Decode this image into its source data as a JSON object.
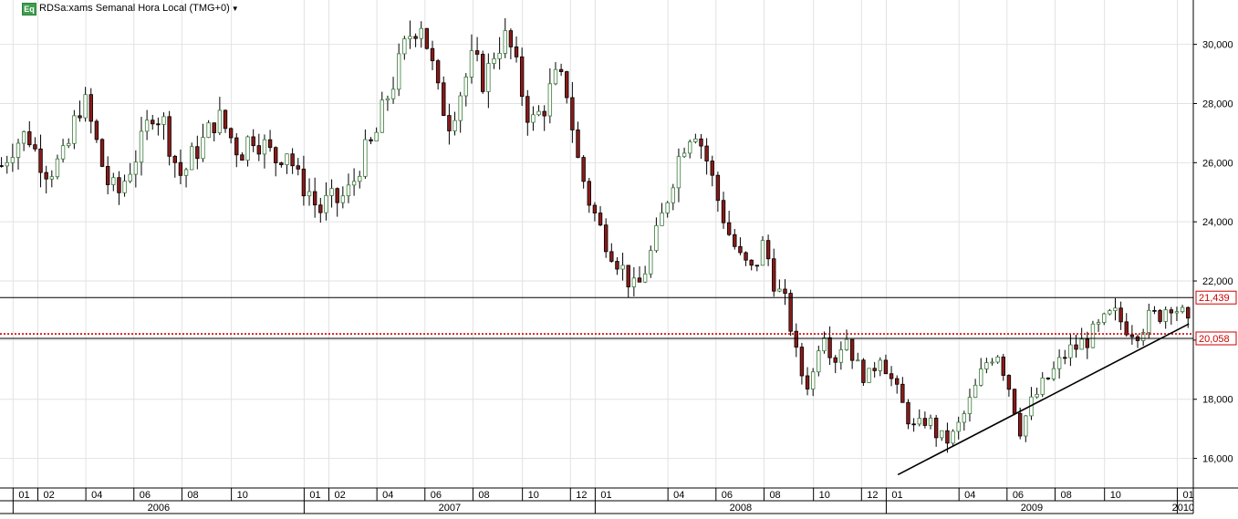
{
  "header": {
    "badge": "Eq",
    "title": "RDSa:xams Semanal Hora Local (TMG+0)",
    "caret_icon": "caret-down-icon"
  },
  "chart_data": {
    "type": "candlestick",
    "interval": "weekly",
    "ylim": [
      15000,
      31500
    ],
    "grid": true,
    "y_ticks": [
      "16,000",
      "18,000",
      "20,000",
      "22,000",
      "24,000",
      "26,000",
      "28,000",
      "30,000"
    ],
    "y_tick_values": [
      16000,
      18000,
      20000,
      22000,
      24000,
      26000,
      28000,
      30000
    ],
    "months": [
      {
        "label": "01",
        "at": 2006.0
      },
      {
        "label": "02",
        "at": 2006.085
      },
      {
        "label": "04",
        "at": 2006.25
      },
      {
        "label": "06",
        "at": 2006.415
      },
      {
        "label": "08",
        "at": 2006.58
      },
      {
        "label": "10",
        "at": 2006.75
      },
      {
        "label": "01",
        "at": 2007.0
      },
      {
        "label": "02",
        "at": 2007.085
      },
      {
        "label": "04",
        "at": 2007.25
      },
      {
        "label": "06",
        "at": 2007.415
      },
      {
        "label": "08",
        "at": 2007.58
      },
      {
        "label": "10",
        "at": 2007.75
      },
      {
        "label": "12",
        "at": 2007.915
      },
      {
        "label": "01",
        "at": 2008.0
      },
      {
        "label": "04",
        "at": 2008.25
      },
      {
        "label": "06",
        "at": 2008.415
      },
      {
        "label": "08",
        "at": 2008.58
      },
      {
        "label": "10",
        "at": 2008.75
      },
      {
        "label": "12",
        "at": 2008.915
      },
      {
        "label": "01",
        "at": 2009.0
      },
      {
        "label": "04",
        "at": 2009.25
      },
      {
        "label": "06",
        "at": 2009.415
      },
      {
        "label": "08",
        "at": 2009.58
      },
      {
        "label": "10",
        "at": 2009.75
      },
      {
        "label": "01",
        "at": 2010.0
      }
    ],
    "years": [
      {
        "label": "2006",
        "start": 2006.0,
        "end": 2007.0
      },
      {
        "label": "2007",
        "start": 2007.0,
        "end": 2008.0
      },
      {
        "label": "2008",
        "start": 2008.0,
        "end": 2009.0
      },
      {
        "label": "2009",
        "start": 2009.0,
        "end": 2010.0
      },
      {
        "label": "2010",
        "start": 2010.0,
        "end": 2010.04
      }
    ],
    "x_range": [
      2005.955,
      2010.055
    ],
    "path_points": [
      [
        2005.96,
        25900
      ],
      [
        2006.0,
        26600
      ],
      [
        2006.05,
        27000
      ],
      [
        2006.08,
        26300
      ],
      [
        2006.12,
        25700
      ],
      [
        2006.18,
        26200
      ],
      [
        2006.22,
        27700
      ],
      [
        2006.24,
        28200
      ],
      [
        2006.28,
        26900
      ],
      [
        2006.32,
        25400
      ],
      [
        2006.36,
        24900
      ],
      [
        2006.4,
        25800
      ],
      [
        2006.44,
        26600
      ],
      [
        2006.48,
        27800
      ],
      [
        2006.52,
        27300
      ],
      [
        2006.55,
        26200
      ],
      [
        2006.58,
        25500
      ],
      [
        2006.62,
        26300
      ],
      [
        2006.66,
        26800
      ],
      [
        2006.7,
        27600
      ],
      [
        2006.74,
        27000
      ],
      [
        2006.78,
        26300
      ],
      [
        2006.82,
        27000
      ],
      [
        2006.86,
        26600
      ],
      [
        2006.9,
        26100
      ],
      [
        2006.94,
        26500
      ],
      [
        2006.98,
        25400
      ],
      [
        2007.02,
        25000
      ],
      [
        2007.05,
        24300
      ],
      [
        2007.08,
        24700
      ],
      [
        2007.12,
        24700
      ],
      [
        2007.16,
        25100
      ],
      [
        2007.2,
        26200
      ],
      [
        2007.24,
        26700
      ],
      [
        2007.28,
        28100
      ],
      [
        2007.32,
        29100
      ],
      [
        2007.36,
        30300
      ],
      [
        2007.4,
        30900
      ],
      [
        2007.43,
        29700
      ],
      [
        2007.46,
        28300
      ],
      [
        2007.5,
        27400
      ],
      [
        2007.54,
        28500
      ],
      [
        2007.58,
        29500
      ],
      [
        2007.62,
        28700
      ],
      [
        2007.66,
        30000
      ],
      [
        2007.7,
        30200
      ],
      [
        2007.74,
        28700
      ],
      [
        2007.78,
        27300
      ],
      [
        2007.82,
        27800
      ],
      [
        2007.86,
        28800
      ],
      [
        2007.9,
        28600
      ],
      [
        2007.94,
        26100
      ],
      [
        2007.98,
        24700
      ],
      [
        2008.02,
        23700
      ],
      [
        2008.06,
        23000
      ],
      [
        2008.1,
        22300
      ],
      [
        2008.14,
        21600
      ],
      [
        2008.18,
        22600
      ],
      [
        2008.22,
        23800
      ],
      [
        2008.26,
        25300
      ],
      [
        2008.3,
        26600
      ],
      [
        2008.34,
        27300
      ],
      [
        2008.38,
        26200
      ],
      [
        2008.42,
        24800
      ],
      [
        2008.46,
        23600
      ],
      [
        2008.5,
        22700
      ],
      [
        2008.54,
        22300
      ],
      [
        2008.58,
        23300
      ],
      [
        2008.62,
        21800
      ],
      [
        2008.66,
        21100
      ],
      [
        2008.7,
        19000
      ],
      [
        2008.74,
        18400
      ],
      [
        2008.78,
        20600
      ],
      [
        2008.82,
        19300
      ],
      [
        2008.86,
        20200
      ],
      [
        2008.9,
        19100
      ],
      [
        2008.94,
        18700
      ],
      [
        2008.98,
        19600
      ],
      [
        2009.02,
        18600
      ],
      [
        2009.06,
        17700
      ],
      [
        2009.1,
        16900
      ],
      [
        2009.14,
        17400
      ],
      [
        2009.18,
        16700
      ],
      [
        2009.22,
        16600
      ],
      [
        2009.26,
        17300
      ],
      [
        2009.3,
        18200
      ],
      [
        2009.34,
        19200
      ],
      [
        2009.38,
        19700
      ],
      [
        2009.42,
        18500
      ],
      [
        2009.46,
        17000
      ],
      [
        2009.5,
        17900
      ],
      [
        2009.54,
        18500
      ],
      [
        2009.58,
        19000
      ],
      [
        2009.62,
        19600
      ],
      [
        2009.66,
        19800
      ],
      [
        2009.7,
        20100
      ],
      [
        2009.74,
        20500
      ],
      [
        2009.78,
        20900
      ],
      [
        2009.82,
        20500
      ],
      [
        2009.86,
        20300
      ],
      [
        2009.9,
        20700
      ],
      [
        2009.94,
        20900
      ],
      [
        2009.98,
        21300
      ],
      [
        2010.02,
        20800
      ],
      [
        2010.05,
        20100
      ]
    ],
    "horizontal_lines": [
      {
        "value": 21439,
        "label": "21,439",
        "color": "#000000",
        "style": "solid"
      },
      {
        "value": 20058,
        "label": "20,058",
        "color": "#000000",
        "style": "solid"
      },
      {
        "value": 20210,
        "label": "",
        "color": "#cc0000",
        "style": "dotted"
      }
    ],
    "trendline": {
      "x1": 2009.04,
      "y1": 15450,
      "x2": 2010.04,
      "y2": 20550,
      "color": "#000000"
    },
    "colors": {
      "up": "#3a7a3a",
      "down": "#8b1a1a",
      "wick": "#000000",
      "grid": "#e2e2e2",
      "label_border": "#cc0000",
      "label_text": "#cc0000"
    }
  }
}
